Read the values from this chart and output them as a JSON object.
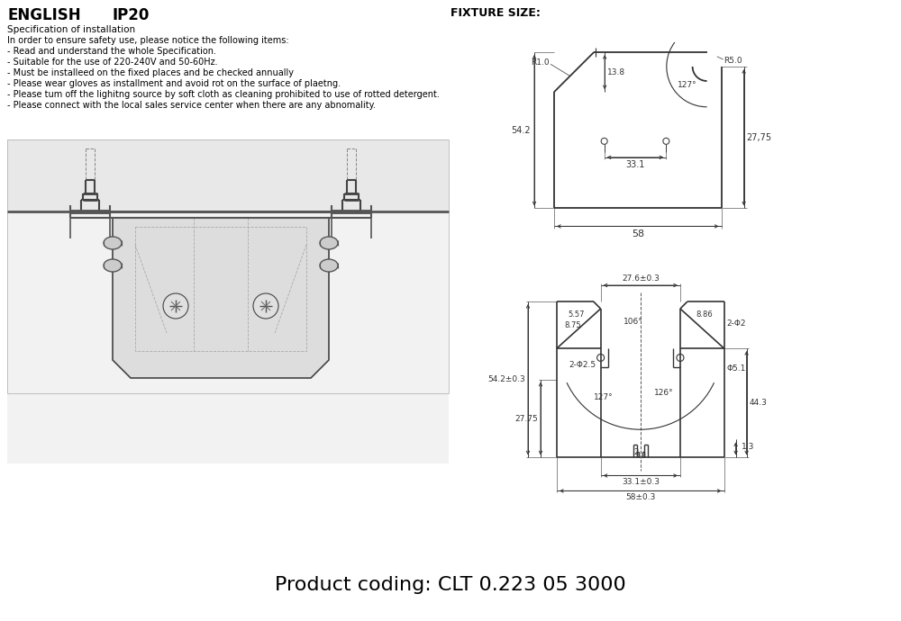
{
  "bg_color": "#ffffff",
  "text_color": "#000000",
  "dim_color": "#333333",
  "line_color": "#333333",
  "title_line1": "ENGLISH",
  "title_ip": "IP20",
  "title_fixture": "FIXTURE SIZE:",
  "spec_title": "Specification of installation",
  "spec_lines": [
    "In order to ensure safety use, please notice the following items:",
    "- Read and understand the whole Specification.",
    "- Suitable for the use of 220-240V and 50-60Hz.",
    "- Must be installeed on the fixed places and be checked annually",
    "- Please wear gloves as installment and avoid rot on the surface of plaetng.",
    "- Please tum off the lighitng source by soft cloth as cleaning prohibited to use of rotted detergent.",
    "- Please connect with the local sales service center when there are any abnomality."
  ],
  "product_coding": "Product coding: CLT 0.223 05 3000"
}
